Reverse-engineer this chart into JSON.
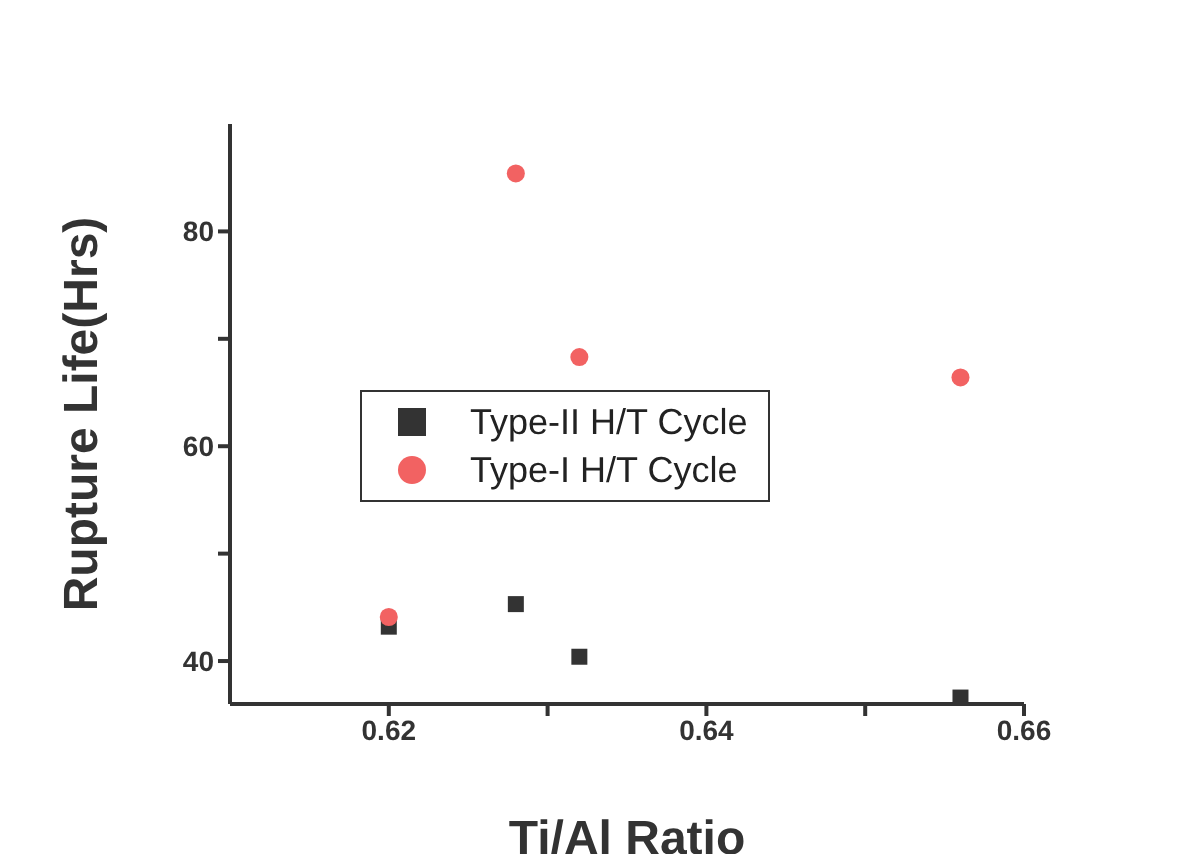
{
  "chart_data": {
    "type": "scatter",
    "xlabel": "Ti/Al Ratio",
    "ylabel": "Rupture Life(Hrs)",
    "xlim": [
      0.61,
      0.66
    ],
    "xticks": [
      0.62,
      {
        "value": 0.63,
        "label": null
      },
      0.64,
      {
        "value": 0.65,
        "label": null
      },
      0.66
    ],
    "ylim": [
      36,
      90
    ],
    "yticks": [
      40,
      {
        "value": 50,
        "label": null
      },
      60,
      {
        "value": 70,
        "label": null
      },
      80
    ],
    "legend": "left",
    "grid": false,
    "series": [
      {
        "name": "Type-II H/T Cycle",
        "color": "#333333",
        "marker": "square",
        "x": [
          0.62,
          0.628,
          0.632,
          0.656
        ],
        "values": [
          43.2,
          45.3,
          40.4,
          36.6
        ]
      },
      {
        "name": "Type-I H/T Cycle",
        "color": "#f26262",
        "marker": "circle",
        "x": [
          0.62,
          0.628,
          0.632,
          0.656
        ],
        "values": [
          44.1,
          85.4,
          68.3,
          66.4
        ]
      }
    ]
  }
}
